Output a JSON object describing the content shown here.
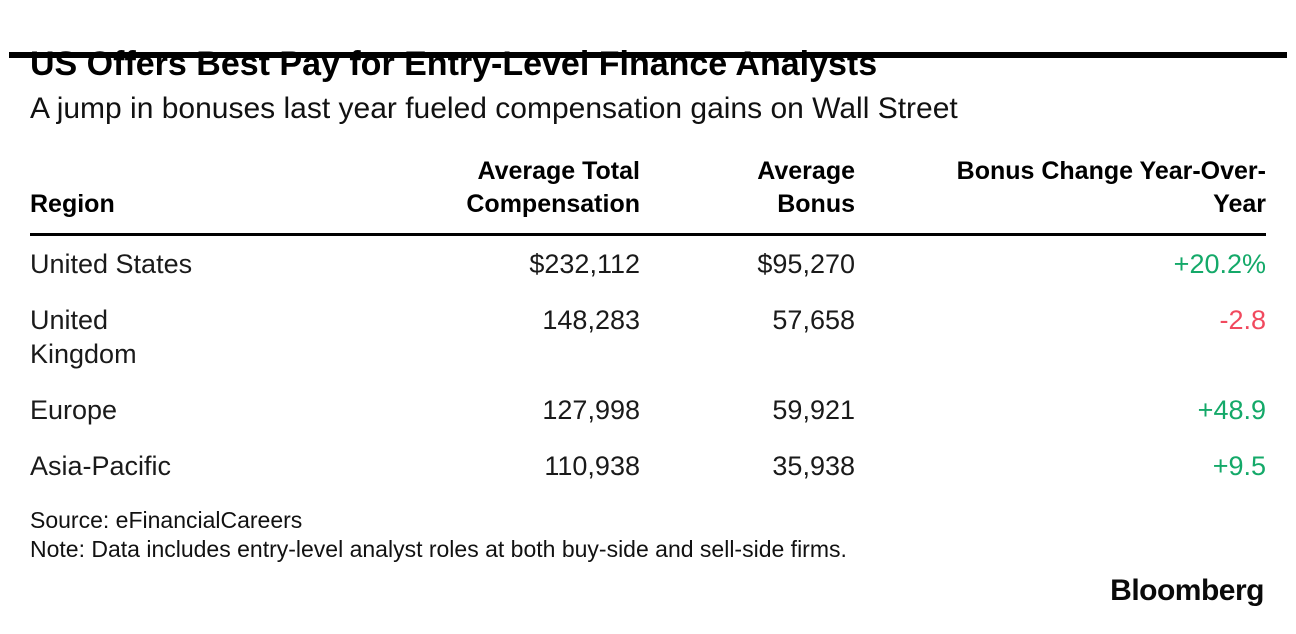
{
  "header": {
    "title": "US Offers Best Pay for Entry-Level Finance Analysts",
    "subtitle": "A jump in bonuses last year fueled compensation gains on Wall Street"
  },
  "table": {
    "columns": [
      {
        "line1": "Region",
        "line2": ""
      },
      {
        "line1": "Average Total",
        "line2": "Compensation"
      },
      {
        "line1": "Average",
        "line2": "Bonus"
      },
      {
        "line1": "Bonus Change Year-Over-",
        "line2": "Year"
      }
    ],
    "rows": [
      {
        "region": "United States",
        "avg_total_compensation": "$232,112",
        "avg_bonus": "$95,270",
        "bonus_change": "+20.2%",
        "trend": "positive"
      },
      {
        "region": "United\nKingdom",
        "avg_total_compensation": "148,283",
        "avg_bonus": "57,658",
        "bonus_change": "-2.8",
        "trend": "negative"
      },
      {
        "region": "Europe",
        "avg_total_compensation": "127,998",
        "avg_bonus": "59,921",
        "bonus_change": "+48.9",
        "trend": "positive"
      },
      {
        "region": "Asia-Pacific",
        "avg_total_compensation": "110,938",
        "avg_bonus": "35,938",
        "bonus_change": "+9.5",
        "trend": "positive"
      }
    ]
  },
  "footer": {
    "source": "Source: eFinancialCareers",
    "note": "Note: Data includes entry-level analyst roles at both buy-side and sell-side firms.",
    "brand": "Bloomberg"
  },
  "colors": {
    "positive_change": "#14a969",
    "negative_change": "#f1495e",
    "top_bar": "#000000"
  },
  "chart_data": {
    "type": "table",
    "title": "US Offers Best Pay for Entry-Level Finance Analysts",
    "subtitle": "A jump in bonuses last year fueled compensation gains on Wall Street",
    "categories": [
      "United States",
      "United Kingdom",
      "Europe",
      "Asia-Pacific"
    ],
    "series": [
      {
        "name": "Average Total Compensation (USD)",
        "values": [
          232112,
          148283,
          127998,
          110938
        ]
      },
      {
        "name": "Average Bonus (USD)",
        "values": [
          95270,
          57658,
          59921,
          35938
        ]
      },
      {
        "name": "Bonus Change Year-Over-Year (%)",
        "values": [
          20.2,
          -2.8,
          48.9,
          9.5
        ]
      }
    ],
    "source": "eFinancialCareers",
    "note": "Data includes entry-level analyst roles at both buy-side and sell-side firms."
  }
}
